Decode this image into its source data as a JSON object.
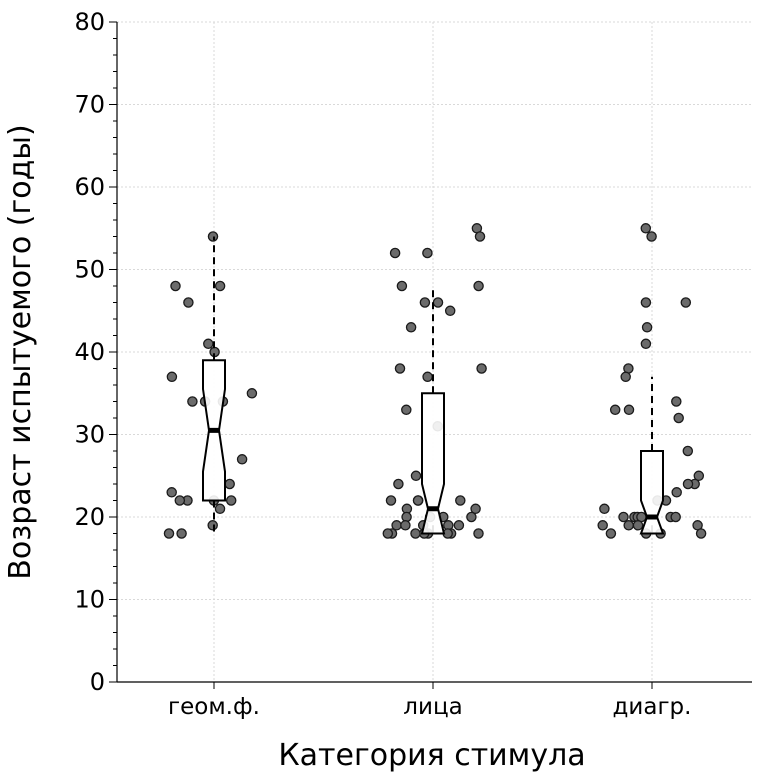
{
  "chart_data": {
    "type": "box",
    "title": "",
    "xlabel": "Категория стимула",
    "ylabel": "Возраст испытуемого (годы)",
    "ylim": [
      0,
      80
    ],
    "yticks": [
      "0",
      "10",
      "20",
      "30",
      "40",
      "50",
      "60",
      "70",
      "80"
    ],
    "grid": true,
    "categories": [
      "геом.ф.",
      "лица",
      "диагр."
    ],
    "boxes": [
      {
        "category": "геом.ф.",
        "min": 18,
        "q1": 22,
        "median": 30.5,
        "q3": 39,
        "max": 54,
        "notch_low": 25.5,
        "notch_high": 35.5
      },
      {
        "category": "лица",
        "min": 18,
        "q1": 19,
        "median": 21,
        "q3": 35,
        "max": 48,
        "notch_low": 18,
        "notch_high": 24
      },
      {
        "category": "диагр.",
        "min": 18,
        "q1": 19,
        "median": 20,
        "q3": 28,
        "max": 37,
        "notch_low": 18,
        "notch_high": 22
      }
    ],
    "points": [
      {
        "category": "геом.ф.",
        "values": [
          54,
          48,
          48,
          46,
          41,
          40,
          37,
          35,
          34,
          34,
          34,
          27,
          24,
          23,
          22,
          22,
          22,
          22,
          21,
          19,
          18,
          18
        ]
      },
      {
        "category": "лица",
        "values": [
          55,
          54,
          52,
          52,
          48,
          48,
          46,
          46,
          45,
          43,
          38,
          38,
          37,
          33,
          31,
          25,
          24,
          22,
          22,
          22,
          22,
          21,
          21,
          20,
          20,
          20,
          20,
          19,
          19,
          19,
          19,
          19,
          18,
          18,
          18,
          18,
          18,
          18,
          18,
          18
        ]
      },
      {
        "category": "диагр.",
        "values": [
          55,
          54,
          46,
          46,
          43,
          41,
          38,
          37,
          34,
          33,
          33,
          32,
          28,
          25,
          24,
          24,
          23,
          22,
          22,
          21,
          20,
          20,
          20,
          20,
          20,
          20,
          19,
          19,
          19,
          19,
          18,
          18,
          18,
          18
        ]
      }
    ]
  }
}
